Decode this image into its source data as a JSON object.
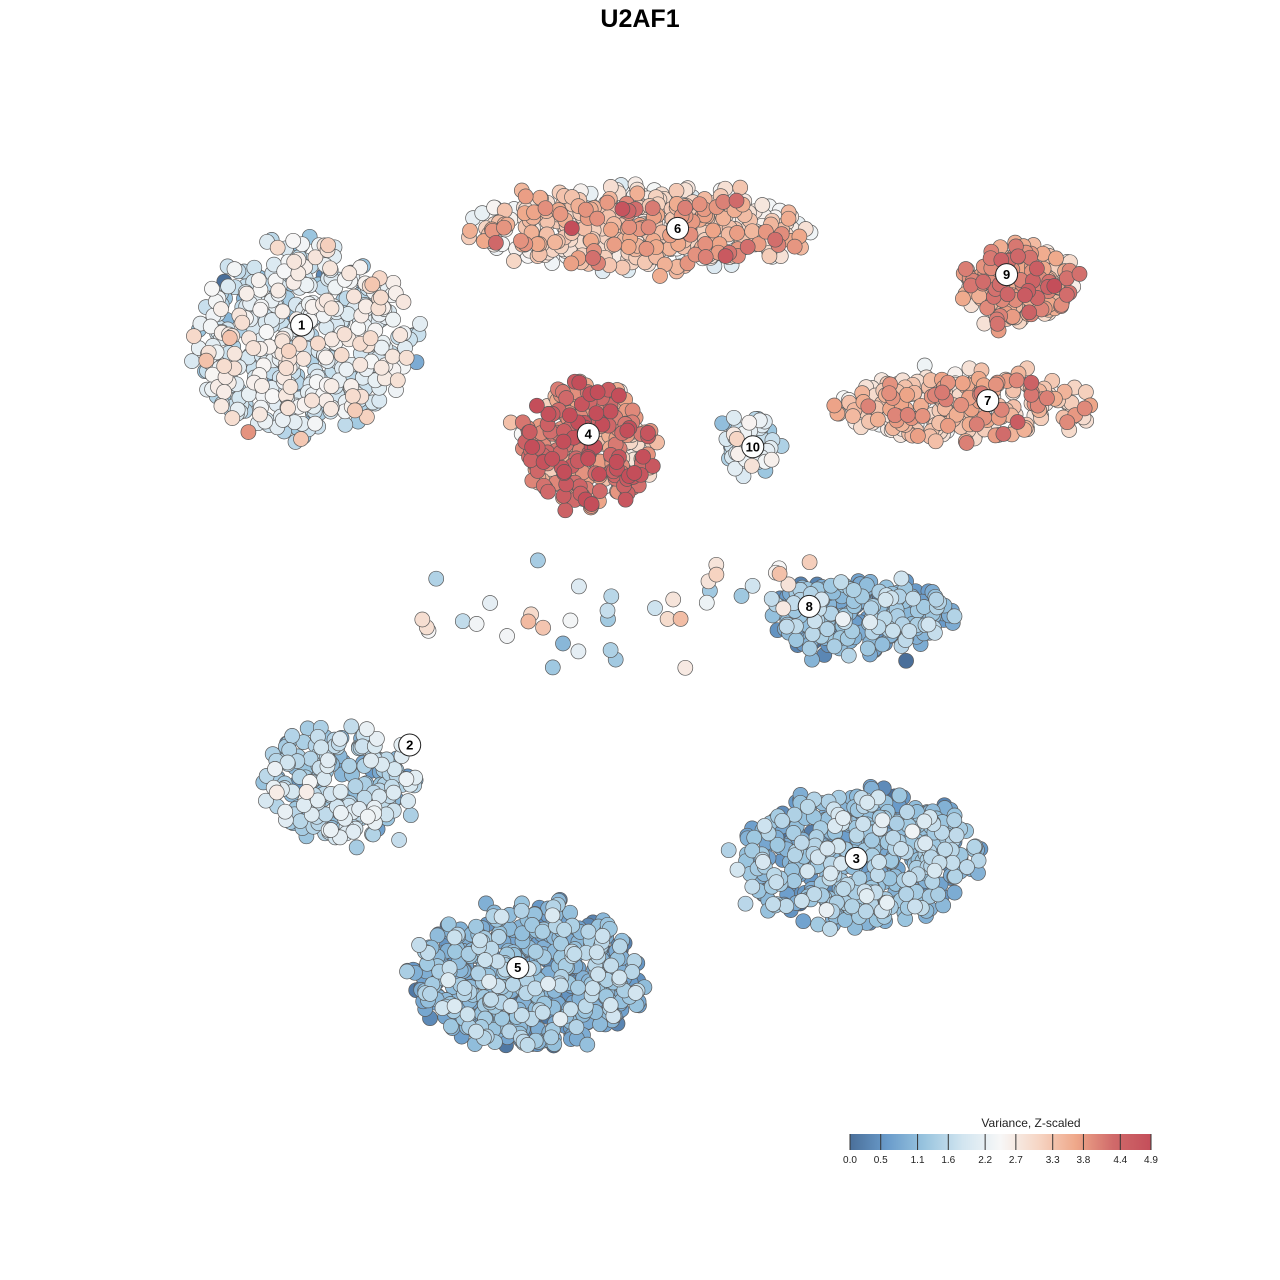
{
  "chart_data": {
    "type": "scatter",
    "title": "U2AF1",
    "xlabel": "",
    "ylabel": "",
    "grid": false,
    "legend": {
      "title": "Variance, Z-scaled",
      "position": "bottom-right",
      "range": [
        0.0,
        4.9
      ],
      "ticks": [
        0.0,
        0.5,
        1.1,
        1.6,
        2.2,
        2.7,
        3.3,
        3.8,
        4.4,
        4.9
      ],
      "tick_labels": [
        "0.0",
        "0.5",
        "1.1",
        "1.6",
        "2.2",
        "2.7",
        "3.3",
        "3.8",
        "4.4",
        "4.9"
      ],
      "colors": [
        "#4a6f9a",
        "#6a9ccb",
        "#9ac5df",
        "#d2e5f0",
        "#f7f7f7",
        "#f6d6c5",
        "#efa88a",
        "#d06a6a",
        "#c44e5a"
      ]
    },
    "clusters": [
      {
        "label": "1",
        "x": -0.72,
        "y": 0.75,
        "mean_value": 2.0
      },
      {
        "label": "2",
        "x": -0.49,
        "y": -0.25,
        "mean_value": 1.5
      },
      {
        "label": "3",
        "x": 0.46,
        "y": -0.52,
        "mean_value": 1.1
      },
      {
        "label": "4",
        "x": -0.11,
        "y": 0.49,
        "mean_value": 3.8
      },
      {
        "label": "5",
        "x": -0.26,
        "y": -0.78,
        "mean_value": 0.9
      },
      {
        "label": "6",
        "x": 0.08,
        "y": 0.98,
        "mean_value": 3.0
      },
      {
        "label": "7",
        "x": 0.74,
        "y": 0.57,
        "mean_value": 3.2
      },
      {
        "label": "8",
        "x": 0.36,
        "y": 0.08,
        "mean_value": 1.0
      },
      {
        "label": "9",
        "x": 0.78,
        "y": 0.87,
        "mean_value": 3.5
      },
      {
        "label": "10",
        "x": 0.24,
        "y": 0.46,
        "mean_value": 1.8
      }
    ]
  }
}
